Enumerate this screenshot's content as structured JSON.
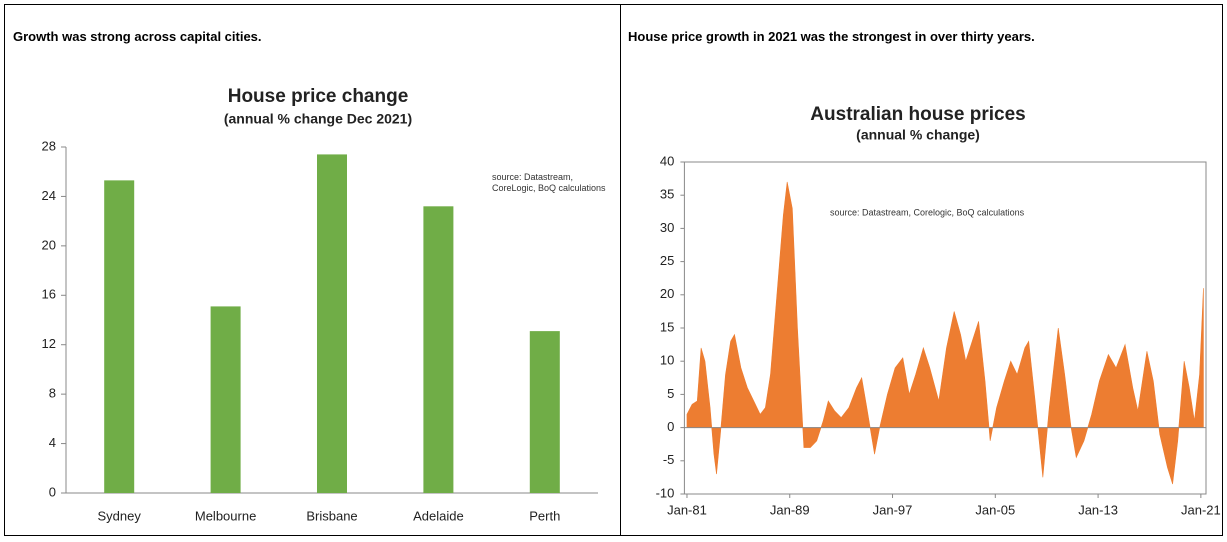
{
  "headings": [
    "Growth was strong across capital cities.",
    "House price growth in 2021 was the strongest in over thirty years."
  ],
  "chart_data": [
    {
      "type": "bar",
      "title": "House price change",
      "subtitle": "(annual % change Dec 2021)",
      "annotation": "source:  Datastream, CoreLogic,  BoQ calculations",
      "categories": [
        "Sydney",
        "Melbourne",
        "Brisbane",
        "Adelaide",
        "Perth"
      ],
      "values": [
        25.3,
        15.1,
        27.4,
        23.2,
        13.1
      ],
      "color": "#70ad47",
      "ylim": [
        0,
        28
      ],
      "yticks": [
        0,
        4,
        8,
        12,
        16,
        20,
        24,
        28
      ],
      "grid": false
    },
    {
      "type": "area",
      "title": "Australian house prices",
      "subtitle": "(annual % change)",
      "annotation": "source:  Datastream, Corelogic, BoQ calculations",
      "x": [
        1981.0,
        1981.4,
        1981.8,
        1982.1,
        1982.4,
        1982.8,
        1983.1,
        1983.3,
        1983.6,
        1984.0,
        1984.4,
        1984.7,
        1985.2,
        1985.7,
        1986.2,
        1986.7,
        1987.1,
        1987.5,
        1988.0,
        1988.5,
        1988.8,
        1989.2,
        1989.6,
        1990.1,
        1990.6,
        1991.1,
        1991.6,
        1992.0,
        1992.5,
        1993.0,
        1993.6,
        1994.2,
        1994.6,
        1995.0,
        1995.6,
        1996.0,
        1996.6,
        1997.2,
        1997.8,
        1998.3,
        1998.8,
        1999.4,
        1999.9,
        2000.6,
        2001.2,
        2001.8,
        2002.3,
        2002.7,
        2003.2,
        2003.7,
        2004.2,
        2004.6,
        2005.1,
        2005.7,
        2006.2,
        2006.7,
        2007.3,
        2007.6,
        2008.1,
        2008.7,
        2009.2,
        2009.9,
        2010.4,
        2010.9,
        2011.3,
        2011.9,
        2012.5,
        2013.1,
        2013.8,
        2014.4,
        2015.1,
        2015.7,
        2016.1,
        2016.8,
        2017.3,
        2017.8,
        2018.4,
        2018.8,
        2019.2,
        2019.7,
        2020.1,
        2020.5,
        2020.9,
        2021.2
      ],
      "series": [
        {
          "name": "House prices",
          "color": "#ed7d31",
          "values": [
            2,
            3.5,
            4,
            12,
            10,
            3,
            -4,
            -7,
            -1,
            8,
            13,
            14,
            9,
            6,
            4,
            2,
            3,
            8,
            20,
            32,
            37,
            33,
            15,
            -3,
            -3,
            -2,
            1,
            4,
            2.5,
            1.5,
            3,
            6,
            7.5,
            3,
            -4,
            0,
            5,
            9,
            10.5,
            5,
            8,
            12,
            9,
            4,
            12,
            17.5,
            14,
            10,
            13,
            16,
            7,
            -2,
            3,
            7,
            10,
            8,
            12,
            13,
            4,
            -7.5,
            3,
            15,
            8,
            0,
            -4.5,
            -2,
            2,
            7,
            11,
            9,
            12.5,
            6,
            2.5,
            11.5,
            7,
            -1,
            -6,
            -8.5,
            -2,
            10,
            6,
            1,
            8,
            21
          ]
        }
      ],
      "xlim": [
        1980.8,
        2021.4
      ],
      "xticks": [
        {
          "value": 1981,
          "label": "Jan-81"
        },
        {
          "value": 1989,
          "label": "Jan-89"
        },
        {
          "value": 1997,
          "label": "Jan-97"
        },
        {
          "value": 2005,
          "label": "Jan-05"
        },
        {
          "value": 2013,
          "label": "Jan-13"
        },
        {
          "value": 2021,
          "label": "Jan-21"
        }
      ],
      "ylim": [
        -10,
        40
      ],
      "yticks": [
        -10,
        -5,
        0,
        5,
        10,
        15,
        20,
        25,
        30,
        35,
        40
      ]
    }
  ]
}
